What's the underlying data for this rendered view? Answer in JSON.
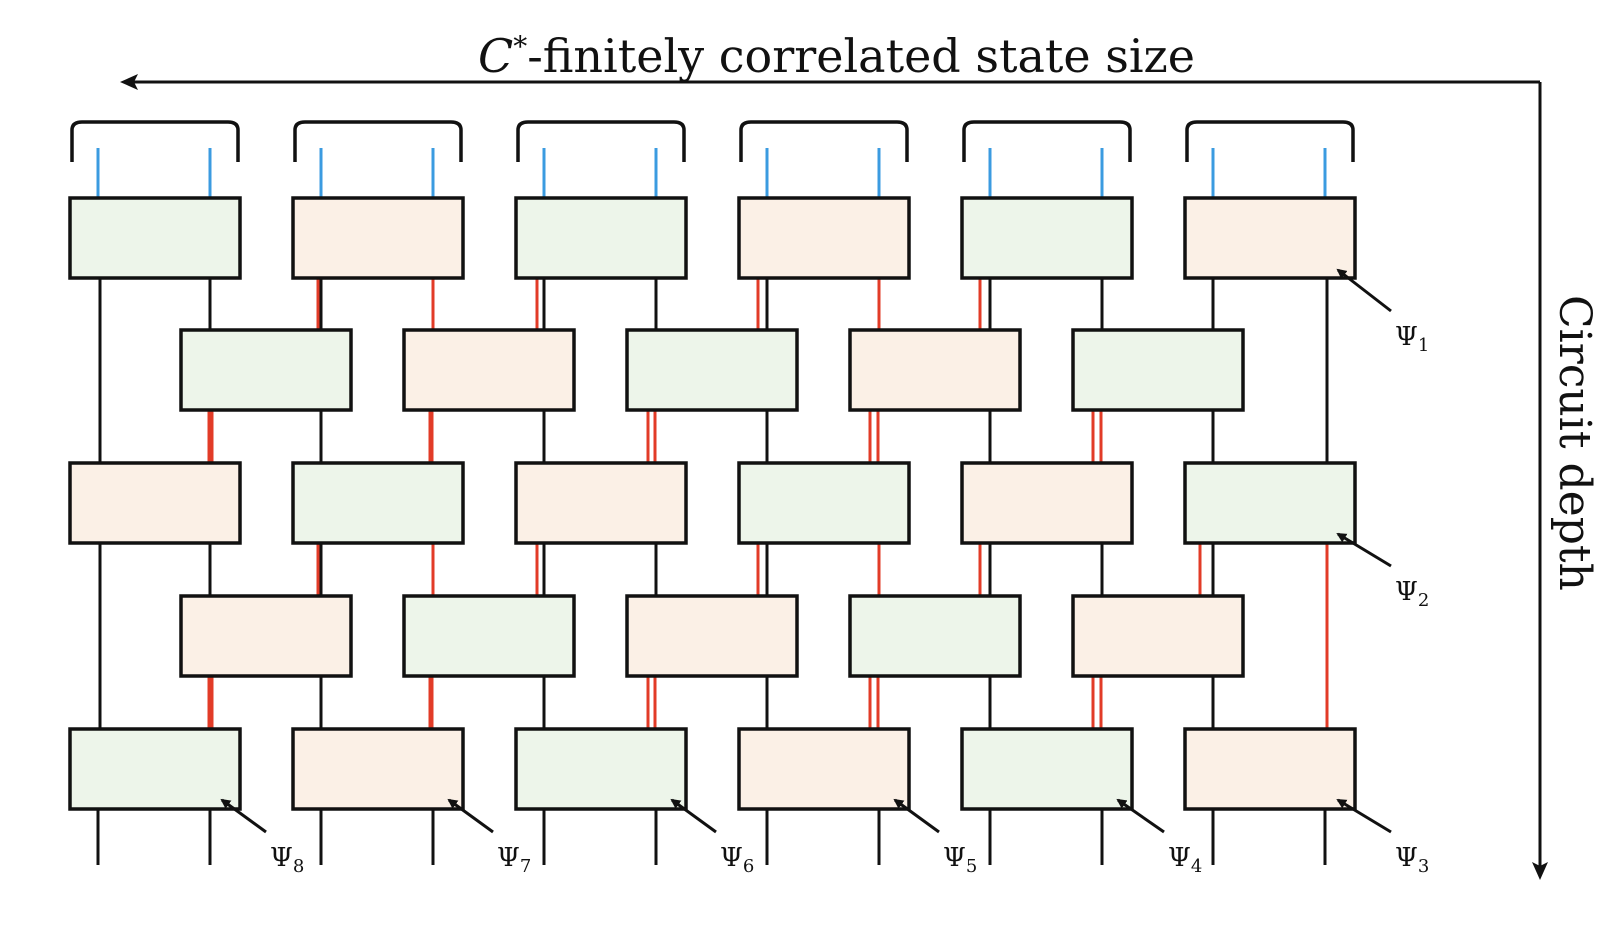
{
  "diagram": {
    "title": "C*-finitely correlated state size",
    "title_parts": {
      "symbol": "C",
      "superscript": "*",
      "rest": "-finitely correlated state size"
    },
    "side_label": "Circuit depth",
    "psi_symbol": "Ψ",
    "psi_labels": [
      "1",
      "2",
      "3",
      "4",
      "5",
      "6",
      "7",
      "8"
    ],
    "colors": {
      "green_box": "#edf5ea",
      "peach_box": "#fbf0e6",
      "box_stroke": "#111111",
      "blue_leg": "#3b9be0",
      "red_leg": "#e23b27",
      "black_leg": "#111111"
    },
    "rows": [
      {
        "cells": [
          "green",
          "peach",
          "green",
          "peach",
          "green",
          "peach"
        ]
      },
      {
        "cells": [
          "green",
          "peach",
          "green",
          "peach",
          "green"
        ]
      },
      {
        "cells": [
          "peach",
          "green",
          "peach",
          "green",
          "peach",
          "green"
        ]
      },
      {
        "cells": [
          "peach",
          "green",
          "peach",
          "green",
          "peach"
        ]
      },
      {
        "cells": [
          "green",
          "peach",
          "green",
          "peach",
          "green",
          "peach"
        ]
      }
    ]
  }
}
